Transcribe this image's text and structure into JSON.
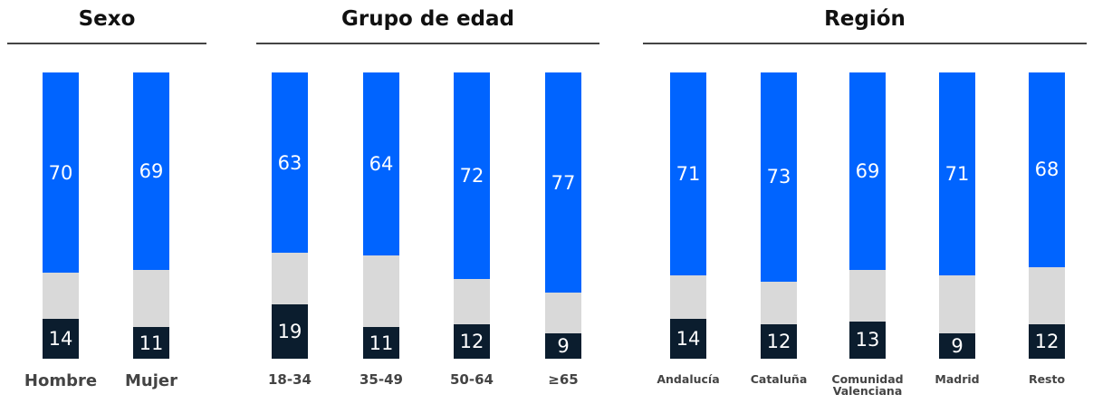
{
  "chart_data": [
    {
      "type": "stacked_bar",
      "title": "Sexo",
      "categories": [
        "Hombre",
        "Mujer"
      ],
      "series": [
        {
          "color": "#0b1d2e",
          "values": [
            14,
            11
          ],
          "labels": true
        },
        {
          "color": "#d9d9d9",
          "values": [
            16,
            20
          ],
          "labels": false
        },
        {
          "color": "#0064ff",
          "values": [
            70,
            69
          ],
          "labels": true
        }
      ],
      "ylim": [
        0,
        100
      ]
    },
    {
      "type": "stacked_bar",
      "title": "Grupo de edad",
      "categories": [
        "18-34",
        "35-49",
        "50-64",
        "≥65"
      ],
      "series": [
        {
          "color": "#0b1d2e",
          "values": [
            19,
            11,
            12,
            9
          ],
          "labels": true
        },
        {
          "color": "#d9d9d9",
          "values": [
            18,
            25,
            16,
            14
          ],
          "labels": false
        },
        {
          "color": "#0064ff",
          "values": [
            63,
            64,
            72,
            77
          ],
          "labels": true
        }
      ],
      "ylim": [
        0,
        100
      ]
    },
    {
      "type": "stacked_bar",
      "title": "Región",
      "categories": [
        "Andalucía",
        "Cataluña",
        "Comunidad Valenciana",
        "Madrid",
        "Resto"
      ],
      "series": [
        {
          "color": "#0b1d2e",
          "values": [
            14,
            12,
            13,
            9,
            12
          ],
          "labels": true
        },
        {
          "color": "#d9d9d9",
          "values": [
            15,
            15,
            18,
            20,
            20
          ],
          "labels": false
        },
        {
          "color": "#0064ff",
          "values": [
            71,
            73,
            69,
            71,
            68
          ],
          "labels": true
        }
      ],
      "ylim": [
        0,
        100
      ]
    }
  ]
}
